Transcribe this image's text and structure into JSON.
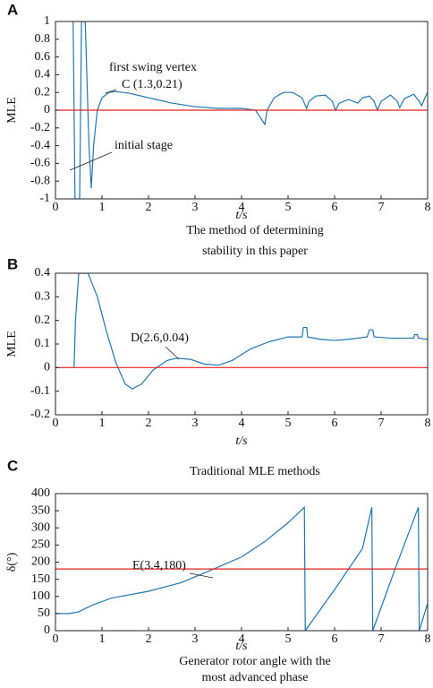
{
  "chart_data": [
    {
      "type": "line",
      "panel_label": "A",
      "ylabel": "MLE",
      "xlabel": "t/s",
      "caption": [
        "The method of determining",
        "stability in this paper"
      ],
      "annotations": [
        "first swing vertex",
        "C (1.3,0.21)",
        "initial stage"
      ],
      "xlim": [
        0,
        8
      ],
      "xticks": [
        0,
        1,
        2,
        3,
        4,
        5,
        6,
        7,
        8
      ],
      "ylim": [
        -1,
        1
      ],
      "yticks": [
        -1,
        -0.8,
        -0.6,
        -0.4,
        -0.2,
        0,
        0.2,
        0.4,
        0.6,
        0.8,
        1
      ],
      "series": [
        {
          "color": "#1f77b4",
          "x": [
            0.38,
            0.42,
            0.52,
            0.56,
            0.64,
            0.72,
            0.77,
            0.82,
            0.9,
            1.0,
            1.15,
            1.3,
            1.6,
            2.0,
            2.5,
            3.0,
            3.5,
            4.0,
            4.3,
            4.5,
            4.55,
            4.7,
            4.9,
            5.1,
            5.3,
            5.4,
            5.45,
            5.6,
            5.8,
            5.95,
            6.02,
            6.1,
            6.3,
            6.5,
            6.6,
            6.75,
            6.85,
            6.92,
            7.0,
            7.2,
            7.35,
            7.4,
            7.5,
            7.7,
            7.82,
            7.87,
            7.95,
            8.0
          ],
          "values": [
            1,
            -1,
            -1,
            1,
            1,
            -0.4,
            -0.88,
            -0.4,
            0.0,
            0.14,
            0.2,
            0.21,
            0.19,
            0.14,
            0.08,
            0.04,
            0.02,
            0.02,
            0.0,
            -0.16,
            0.0,
            0.14,
            0.2,
            0.2,
            0.14,
            0.02,
            0.1,
            0.16,
            0.17,
            0.1,
            0.0,
            0.08,
            0.12,
            0.08,
            0.14,
            0.16,
            0.1,
            0.0,
            0.1,
            0.17,
            0.1,
            0.03,
            0.13,
            0.18,
            0.1,
            0.05,
            0.15,
            0.2
          ]
        },
        {
          "color": "#e8201c",
          "x": [
            0,
            8
          ],
          "values": [
            0,
            0
          ]
        }
      ]
    },
    {
      "type": "line",
      "panel_label": "B",
      "ylabel": "MLE",
      "xlabel": "t/s",
      "caption": [
        "Traditional MLE methods"
      ],
      "annotations": [
        "D(2.6,0.04)"
      ],
      "xlim": [
        0,
        8
      ],
      "xticks": [
        0,
        1,
        2,
        3,
        4,
        5,
        6,
        7,
        8
      ],
      "ylim": [
        -0.2,
        0.4
      ],
      "yticks": [
        -0.2,
        -0.1,
        0,
        0.1,
        0.2,
        0.3,
        0.4
      ],
      "series": [
        {
          "color": "#1f77b4",
          "x": [
            0.4,
            0.43,
            0.5,
            0.7,
            0.9,
            1.1,
            1.3,
            1.5,
            1.65,
            1.85,
            2.1,
            2.4,
            2.6,
            2.9,
            3.2,
            3.5,
            3.8,
            4.2,
            4.6,
            5.0,
            5.3,
            5.33,
            5.4,
            5.42,
            5.7,
            6.0,
            6.3,
            6.7,
            6.75,
            6.82,
            6.85,
            7.2,
            7.7,
            7.72,
            7.78,
            7.8,
            8.0
          ],
          "values": [
            0,
            0.2,
            0.4,
            0.4,
            0.3,
            0.15,
            0.02,
            -0.07,
            -0.09,
            -0.07,
            -0.01,
            0.03,
            0.04,
            0.035,
            0.015,
            0.01,
            0.03,
            0.08,
            0.11,
            0.13,
            0.13,
            0.17,
            0.17,
            0.13,
            0.12,
            0.115,
            0.12,
            0.13,
            0.16,
            0.16,
            0.13,
            0.125,
            0.125,
            0.14,
            0.14,
            0.125,
            0.12
          ]
        },
        {
          "color": "#e8201c",
          "x": [
            0,
            8
          ],
          "values": [
            0,
            0
          ]
        }
      ]
    },
    {
      "type": "line",
      "panel_label": "C",
      "ylabel": "δ(°)",
      "xlabel": "t/s",
      "caption": [
        "Generator rotor angle with the",
        "most advanced phase"
      ],
      "annotations": [
        "E(3.4,180)"
      ],
      "xlim": [
        0,
        8
      ],
      "xticks": [
        0,
        1,
        2,
        3,
        4,
        5,
        6,
        7,
        8
      ],
      "ylim": [
        0,
        400
      ],
      "yticks": [
        0,
        50,
        100,
        150,
        200,
        250,
        300,
        350,
        400
      ],
      "series": [
        {
          "color": "#1f77b4",
          "x": [
            0,
            0.3,
            0.5,
            0.8,
            1.2,
            2.0,
            2.7,
            3.4,
            4.0,
            4.5,
            5.0,
            5.35,
            5.37,
            6.0,
            6.6,
            6.8,
            6.82,
            7.3,
            7.8,
            7.82,
            8.0
          ],
          "values": [
            50,
            50,
            55,
            75,
            95,
            115,
            140,
            180,
            215,
            260,
            315,
            360,
            0,
            120,
            240,
            360,
            0,
            180,
            360,
            0,
            80
          ]
        },
        {
          "color": "#e8201c",
          "x": [
            0,
            8
          ],
          "values": [
            180,
            180
          ]
        }
      ]
    }
  ]
}
